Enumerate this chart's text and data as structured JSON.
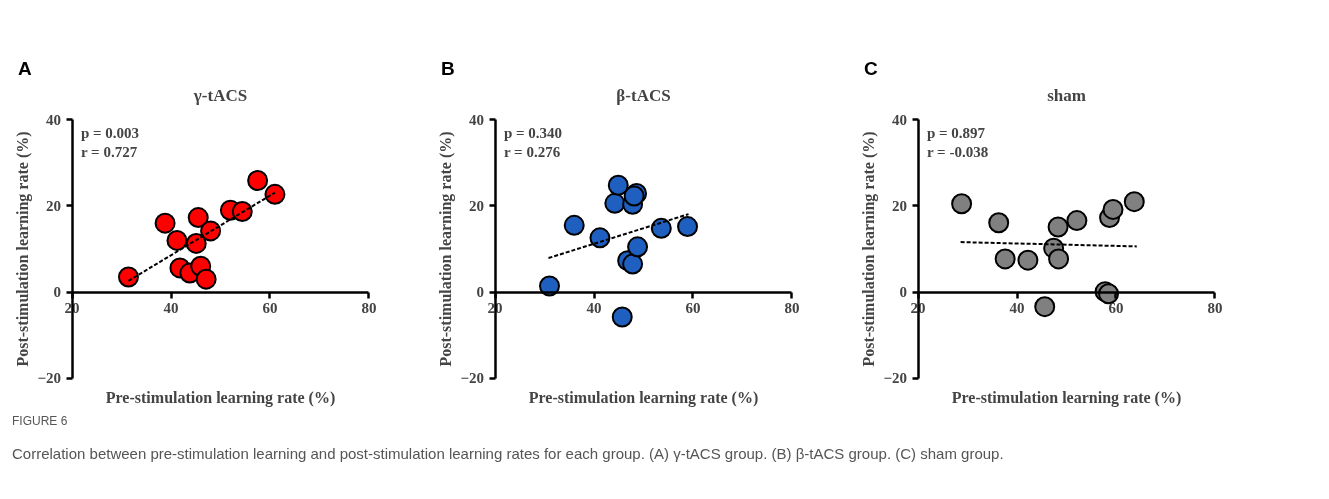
{
  "chart_data": [
    {
      "type": "scatter",
      "title": "γ-tACS",
      "xlabel": "Pre-stimulation learning rate (%)",
      "ylabel": "Post-stimulation learning rate (%)",
      "xlim": [
        20,
        80
      ],
      "ylim": [
        -20,
        40
      ],
      "xticks": [
        20,
        40,
        60,
        80
      ],
      "yticks": [
        -20,
        0,
        20,
        40
      ],
      "grid": false,
      "legend": false,
      "marker": "circle",
      "annotations": [
        "A",
        "p = 0.003",
        "r = 0.727",
        "FIGURE 6",
        "Correlation between pre-stimulation learning and post-stimulation learning rates for each group. (A) γ-tACS group. (B) β-tACS group. (C) sham group."
      ],
      "series": [
        {
          "type": "scatter",
          "color": "#ff0000",
          "x": [
            31.4,
            38.8,
            41.2,
            41.8,
            43.8,
            45.5,
            45.1,
            46.0,
            47.1,
            48.0,
            52.0,
            54.4,
            57.5,
            61.0
          ],
          "values": [
            3.5,
            16.0,
            12.0,
            5.6,
            4.4,
            17.3,
            11.3,
            6.0,
            3.0,
            14.2,
            19.0,
            18.7,
            25.9,
            22.7
          ]
        },
        {
          "type": "line",
          "color": "#000000",
          "line_style": "dashed",
          "marker": "none",
          "x": [
            31.4,
            61.0
          ],
          "values": [
            2.6,
            23.1
          ]
        }
      ]
    },
    {
      "type": "scatter",
      "title": "β-tACS",
      "xlabel": "Pre-stimulation learning rate (%)",
      "ylabel": "Post-stimulation learning rate (%)",
      "xlim": [
        20,
        80
      ],
      "ylim": [
        -20,
        40
      ],
      "xticks": [
        20,
        40,
        60,
        80
      ],
      "yticks": [
        -20,
        0,
        20,
        40
      ],
      "grid": false,
      "legend": false,
      "marker": "circle",
      "annotations": [
        "B",
        "p = 0.340",
        "r = 0.276"
      ],
      "series": [
        {
          "type": "scatter",
          "color": "#1f5fbf",
          "x": [
            31.0,
            36.0,
            41.2,
            44.2,
            44.9,
            45.7,
            46.8,
            47.8,
            47.8,
            48.6,
            48.1,
            48.8,
            53.6,
            58.9
          ],
          "values": [
            1.4,
            15.5,
            12.6,
            20.6,
            24.8,
            -5.8,
            7.3,
            6.5,
            20.4,
            22.9,
            22.3,
            10.5,
            14.8,
            15.2
          ]
        },
        {
          "type": "line",
          "color": "#000000",
          "line_style": "dashed",
          "marker": "none",
          "x": [
            30.8,
            59.1
          ],
          "values": [
            7.9,
            18.1
          ]
        }
      ]
    },
    {
      "type": "scatter",
      "title": "sham",
      "xlabel": "Pre-stimulation learning rate (%)",
      "ylabel": "Post-stimulation learning rate (%)",
      "xlim": [
        20,
        80
      ],
      "ylim": [
        -20,
        40
      ],
      "xticks": [
        20,
        40,
        60,
        80
      ],
      "yticks": [
        -20,
        0,
        20,
        40
      ],
      "grid": false,
      "legend": false,
      "marker": "circle",
      "annotations": [
        "C",
        "p = 0.897",
        "r = -0.038"
      ],
      "series": [
        {
          "type": "scatter",
          "color": "#808080",
          "x": [
            28.8,
            36.3,
            37.6,
            42.2,
            45.6,
            47.4,
            48.3,
            48.4,
            52.1,
            57.8,
            58.5,
            58.7,
            59.4,
            63.7
          ],
          "values": [
            20.5,
            16.1,
            7.7,
            7.4,
            -3.4,
            10.2,
            15.1,
            7.7,
            16.6,
            0.1,
            -0.4,
            17.3,
            19.2,
            21.0
          ]
        },
        {
          "type": "line",
          "color": "#000000",
          "line_style": "dashed",
          "marker": "none",
          "x": [
            28.6,
            64.2
          ],
          "values": [
            11.6,
            10.6
          ]
        }
      ]
    }
  ]
}
